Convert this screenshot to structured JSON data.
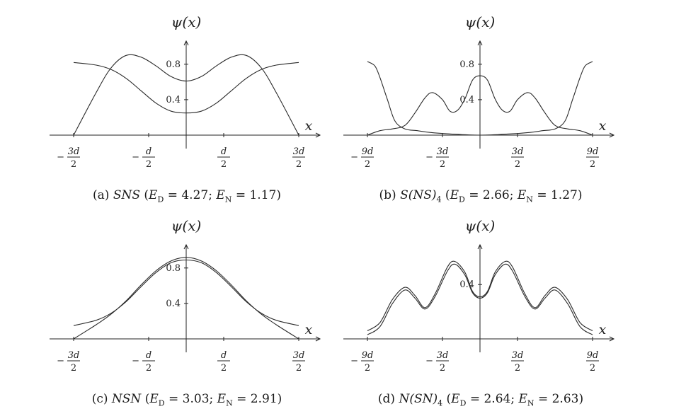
{
  "chart_data": [
    {
      "id": "a",
      "type": "line",
      "caption": "(a) SNS (E_D = 4.27; E_N = 1.17)",
      "caption_parts": {
        "label": "(a)",
        "name": "SNS",
        "ed": "4.27",
        "en": "1.17"
      },
      "ylabel": "ψ(x)",
      "xlabel": "x",
      "xlim": [
        -1.5,
        1.5
      ],
      "ylim": [
        0,
        0.95
      ],
      "xticks": [
        {
          "value": -1.5,
          "sign": "−",
          "num": "3d",
          "den": "2"
        },
        {
          "value": -0.5,
          "sign": "−",
          "num": "d",
          "den": "2"
        },
        {
          "value": 0.5,
          "sign": "",
          "num": "d",
          "den": "2"
        },
        {
          "value": 1.5,
          "sign": "",
          "num": "3d",
          "den": "2"
        }
      ],
      "yticks": [
        0.4,
        0.8
      ],
      "series": [
        {
          "x": [
            -1.5,
            -1.2,
            -1.0,
            -0.8,
            -0.6,
            -0.4,
            -0.2,
            0,
            0.2,
            0.4,
            0.6,
            0.8,
            1.0,
            1.2,
            1.5
          ],
          "y": [
            0.0,
            0.48,
            0.76,
            0.9,
            0.88,
            0.78,
            0.66,
            0.61,
            0.66,
            0.78,
            0.88,
            0.9,
            0.76,
            0.48,
            0.0
          ]
        },
        {
          "x": [
            -1.5,
            -1.2,
            -1.0,
            -0.8,
            -0.6,
            -0.4,
            -0.2,
            0,
            0.2,
            0.4,
            0.6,
            0.8,
            1.0,
            1.2,
            1.5
          ],
          "y": [
            0.82,
            0.79,
            0.74,
            0.64,
            0.5,
            0.36,
            0.27,
            0.25,
            0.27,
            0.36,
            0.5,
            0.64,
            0.74,
            0.79,
            0.82
          ]
        }
      ]
    },
    {
      "id": "b",
      "type": "line",
      "caption": "(b) S(NS)4 (E_D = 2.66; E_N = 1.27)",
      "caption_parts": {
        "label": "(b)",
        "name": "S(NS)",
        "sub": "4",
        "ed": "2.66",
        "en": "1.27"
      },
      "ylabel": "ψ(x)",
      "xlabel": "x",
      "xlim": [
        -4.5,
        4.5
      ],
      "ylim": [
        0,
        0.95
      ],
      "xticks": [
        {
          "value": -4.5,
          "sign": "−",
          "num": "9d",
          "den": "2"
        },
        {
          "value": -1.5,
          "sign": "−",
          "num": "3d",
          "den": "2"
        },
        {
          "value": 1.5,
          "sign": "",
          "num": "3d",
          "den": "2"
        },
        {
          "value": 4.5,
          "sign": "",
          "num": "9d",
          "den": "2"
        }
      ],
      "yticks": [
        0.4,
        0.8
      ],
      "series": [
        {
          "x": [
            -4.5,
            -4.0,
            -3.5,
            -3.0,
            -2.6,
            -2.2,
            -1.9,
            -1.5,
            -1.2,
            -0.9,
            -0.6,
            -0.3,
            0,
            0.3,
            0.6,
            0.9,
            1.2,
            1.5,
            1.9,
            2.2,
            2.6,
            3.0,
            3.5,
            4.0,
            4.5
          ],
          "y": [
            0.0,
            0.05,
            0.07,
            0.11,
            0.25,
            0.42,
            0.48,
            0.4,
            0.27,
            0.28,
            0.41,
            0.62,
            0.67,
            0.62,
            0.41,
            0.28,
            0.27,
            0.4,
            0.48,
            0.42,
            0.25,
            0.11,
            0.07,
            0.05,
            0.0
          ]
        },
        {
          "x": [
            -4.5,
            -4.2,
            -4.0,
            -3.7,
            -3.4,
            -3.0,
            -2.5,
            -2.0,
            -1.0,
            0,
            1.0,
            2.0,
            2.5,
            3.0,
            3.4,
            3.7,
            4.0,
            4.2,
            4.5
          ],
          "y": [
            0.83,
            0.78,
            0.65,
            0.4,
            0.16,
            0.07,
            0.05,
            0.03,
            0.01,
            0.0,
            0.01,
            0.03,
            0.05,
            0.07,
            0.16,
            0.4,
            0.65,
            0.78,
            0.83
          ]
        }
      ]
    },
    {
      "id": "c",
      "type": "line",
      "caption": "(c) NSN (E_D = 3.03; E_N = 2.91)",
      "caption_parts": {
        "label": "(c)",
        "name": "NSN",
        "ed": "3.03",
        "en": "2.91"
      },
      "ylabel": "ψ(x)",
      "xlabel": "x",
      "xlim": [
        -1.5,
        1.5
      ],
      "ylim": [
        0,
        0.95
      ],
      "xticks": [
        {
          "value": -1.5,
          "sign": "−",
          "num": "3d",
          "den": "2"
        },
        {
          "value": -0.5,
          "sign": "−",
          "num": "d",
          "den": "2"
        },
        {
          "value": 0.5,
          "sign": "",
          "num": "d",
          "den": "2"
        },
        {
          "value": 1.5,
          "sign": "",
          "num": "3d",
          "den": "2"
        }
      ],
      "yticks": [
        0.4,
        0.8
      ],
      "series": [
        {
          "x": [
            -1.5,
            -1.2,
            -1.0,
            -0.8,
            -0.6,
            -0.4,
            -0.2,
            0,
            0.2,
            0.4,
            0.6,
            0.8,
            1.0,
            1.2,
            1.5
          ],
          "y": [
            0.0,
            0.16,
            0.28,
            0.43,
            0.61,
            0.77,
            0.88,
            0.92,
            0.88,
            0.77,
            0.61,
            0.43,
            0.28,
            0.16,
            0.0
          ]
        },
        {
          "x": [
            -1.5,
            -1.2,
            -1.0,
            -0.8,
            -0.6,
            -0.4,
            -0.2,
            0,
            0.2,
            0.4,
            0.6,
            0.8,
            1.0,
            1.2,
            1.5
          ],
          "y": [
            0.15,
            0.21,
            0.29,
            0.42,
            0.59,
            0.75,
            0.86,
            0.89,
            0.86,
            0.75,
            0.59,
            0.42,
            0.29,
            0.21,
            0.15
          ]
        }
      ]
    },
    {
      "id": "d",
      "type": "line",
      "caption": "(d) N(SN)4 (E_D = 2.64; E_N = 2.63)",
      "caption_parts": {
        "label": "(d)",
        "name": "N(SN)",
        "sub": "4",
        "ed": "2.64",
        "en": "2.63"
      },
      "ylabel": "ψ(x)",
      "xlabel": "x",
      "xlim": [
        -4.5,
        4.5
      ],
      "ylim": [
        0,
        0.62
      ],
      "xticks": [
        {
          "value": -4.5,
          "sign": "−",
          "num": "9d",
          "den": "2"
        },
        {
          "value": -1.5,
          "sign": "−",
          "num": "3d",
          "den": "2"
        },
        {
          "value": 1.5,
          "sign": "",
          "num": "3d",
          "den": "2"
        },
        {
          "value": 4.5,
          "sign": "",
          "num": "9d",
          "den": "2"
        }
      ],
      "yticks": [
        0.4
      ],
      "series": [
        {
          "x": [
            -4.5,
            -4.0,
            -3.5,
            -3.0,
            -2.6,
            -2.2,
            -1.8,
            -1.3,
            -1.0,
            -0.6,
            -0.3,
            0,
            0.3,
            0.6,
            1.0,
            1.3,
            1.8,
            2.2,
            2.6,
            3.0,
            3.5,
            4.0,
            4.5
          ],
          "y": [
            0.03,
            0.09,
            0.26,
            0.36,
            0.3,
            0.22,
            0.31,
            0.5,
            0.55,
            0.47,
            0.34,
            0.3,
            0.34,
            0.47,
            0.55,
            0.5,
            0.31,
            0.22,
            0.3,
            0.36,
            0.26,
            0.09,
            0.03
          ]
        },
        {
          "x": [
            -4.5,
            -4.0,
            -3.5,
            -3.0,
            -2.6,
            -2.2,
            -1.8,
            -1.3,
            -1.0,
            -0.6,
            -0.3,
            0,
            0.3,
            0.6,
            1.0,
            1.3,
            1.8,
            2.2,
            2.6,
            3.0,
            3.5,
            4.0,
            4.5
          ],
          "y": [
            0.06,
            0.12,
            0.29,
            0.38,
            0.32,
            0.23,
            0.33,
            0.53,
            0.57,
            0.49,
            0.35,
            0.31,
            0.35,
            0.49,
            0.57,
            0.53,
            0.33,
            0.23,
            0.32,
            0.38,
            0.29,
            0.12,
            0.06
          ]
        }
      ]
    }
  ]
}
